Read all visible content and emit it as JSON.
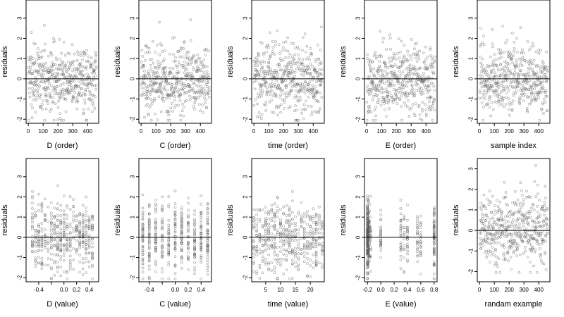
{
  "chart_data": [
    {
      "type": "scatter",
      "xlabel": "D (order)",
      "ylabel": "residuals",
      "xlim": [
        -15,
        475
      ],
      "ylim": [
        -2.2,
        3.9
      ],
      "xticks": [
        0,
        100,
        200,
        300,
        400
      ],
      "xtick_labels": [
        "0",
        "100",
        "200",
        "300",
        "400"
      ],
      "yticks": [
        -2,
        -1,
        0,
        1,
        2,
        3
      ],
      "ytick_labels": [
        "-2",
        "-1",
        "0",
        "1",
        "2",
        "3"
      ],
      "hline": 0,
      "n": 460,
      "x_kind": "index"
    },
    {
      "type": "scatter",
      "xlabel": "C (order)",
      "ylabel": "residuals",
      "xlim": [
        -15,
        475
      ],
      "ylim": [
        -2.2,
        3.9
      ],
      "xticks": [
        0,
        100,
        200,
        300,
        400
      ],
      "xtick_labels": [
        "0",
        "100",
        "200",
        "300",
        "400"
      ],
      "yticks": [
        -2,
        -1,
        0,
        1,
        2,
        3
      ],
      "ytick_labels": [
        "-2",
        "-1",
        "0",
        "1",
        "2",
        "3"
      ],
      "hline": 0,
      "n": 460,
      "x_kind": "index"
    },
    {
      "type": "scatter",
      "xlabel": "time (order)",
      "ylabel": "residuals",
      "xlim": [
        -15,
        475
      ],
      "ylim": [
        -2.2,
        3.9
      ],
      "xticks": [
        0,
        100,
        200,
        300,
        400
      ],
      "xtick_labels": [
        "0",
        "100",
        "200",
        "300",
        "400"
      ],
      "yticks": [
        -2,
        -1,
        0,
        1,
        2,
        3
      ],
      "ytick_labels": [
        "-2",
        "-1",
        "0",
        "1",
        "2",
        "3"
      ],
      "hline": 0,
      "n": 460,
      "x_kind": "index"
    },
    {
      "type": "scatter",
      "xlabel": "E (order)",
      "ylabel": "residuals",
      "xlim": [
        -15,
        475
      ],
      "ylim": [
        -2.2,
        3.9
      ],
      "xticks": [
        0,
        100,
        200,
        300,
        400
      ],
      "xtick_labels": [
        "0",
        "100",
        "200",
        "300",
        "400"
      ],
      "yticks": [
        -2,
        -1,
        0,
        1,
        2,
        3
      ],
      "ytick_labels": [
        "-2",
        "-1",
        "0",
        "1",
        "2",
        "3"
      ],
      "hline": 0,
      "n": 460,
      "x_kind": "index"
    },
    {
      "type": "scatter",
      "xlabel": "sample index",
      "ylabel": "residuals",
      "xlim": [
        -15,
        475
      ],
      "ylim": [
        -2.2,
        3.9
      ],
      "xticks": [
        0,
        100,
        200,
        300,
        400
      ],
      "xtick_labels": [
        "0",
        "100",
        "200",
        "300",
        "400"
      ],
      "yticks": [
        -2,
        -1,
        0,
        1,
        2,
        3
      ],
      "ytick_labels": [
        "-2",
        "-1",
        "0",
        "1",
        "2",
        "3"
      ],
      "hline": 0,
      "n": 460,
      "x_kind": "index"
    },
    {
      "type": "scatter",
      "xlabel": "D (value)",
      "ylabel": "residuals",
      "xlim": [
        -0.6,
        0.55
      ],
      "ylim": [
        -2.2,
        3.9
      ],
      "xticks": [
        -0.4,
        -0.2,
        0.0,
        0.2,
        0.4
      ],
      "xtick_labels": [
        "-0.4",
        "",
        "0.0",
        "0.2",
        "0.4"
      ],
      "yticks": [
        -2,
        -1,
        0,
        1,
        2,
        3
      ],
      "ytick_labels": [
        "-2",
        "-1",
        "0",
        "1",
        "2",
        "3"
      ],
      "hline": 0,
      "n": 460,
      "x_kind": "discrete",
      "x_levels": [
        -0.5,
        -0.45,
        -0.4,
        -0.35,
        -0.3,
        -0.25,
        -0.2,
        -0.15,
        -0.1,
        -0.05,
        0.0,
        0.05,
        0.1,
        0.15,
        0.2,
        0.25,
        0.3,
        0.35,
        0.4,
        0.45
      ]
    },
    {
      "type": "scatter",
      "xlabel": "C (value)",
      "ylabel": "residuals",
      "xlim": [
        -0.56,
        0.56
      ],
      "ylim": [
        -2.2,
        3.9
      ],
      "xticks": [
        -0.4,
        -0.2,
        0.0,
        0.2,
        0.4
      ],
      "xtick_labels": [
        "-0.4",
        "",
        "0.0",
        "0.2",
        "0.4"
      ],
      "yticks": [
        -2,
        -1,
        0,
        1,
        2,
        3
      ],
      "ytick_labels": [
        "-2",
        "-1",
        "0",
        "1",
        "2",
        "3"
      ],
      "hline": 0,
      "n": 460,
      "x_kind": "discrete",
      "x_levels": [
        -0.5,
        -0.4,
        -0.3,
        -0.2,
        -0.1,
        0.0,
        0.1,
        0.2,
        0.3,
        0.4,
        0.5
      ]
    },
    {
      "type": "scatter",
      "xlabel": "time (value)",
      "ylabel": "residuals",
      "xlim": [
        0.3,
        24.7
      ],
      "ylim": [
        -2.2,
        3.9
      ],
      "xticks": [
        5,
        10,
        15,
        20
      ],
      "xtick_labels": [
        "5",
        "10",
        "15",
        "20"
      ],
      "yticks": [
        -2,
        -1,
        0,
        1,
        2,
        3
      ],
      "ytick_labels": [
        "-2",
        "-1",
        "0",
        "1",
        "2",
        "3"
      ],
      "hline": 0,
      "n": 460,
      "x_kind": "discrete",
      "x_levels": [
        1,
        2,
        3,
        4,
        5,
        6,
        7,
        8,
        9,
        10,
        11,
        12,
        13,
        14,
        15,
        16,
        17,
        18,
        19,
        20,
        21,
        22,
        23,
        24
      ]
    },
    {
      "type": "scatter",
      "xlabel": "E (value)",
      "ylabel": "residuals",
      "xlim": [
        -0.245,
        0.845
      ],
      "ylim": [
        -2.2,
        3.9
      ],
      "xticks": [
        -0.2,
        0.0,
        0.2,
        0.4,
        0.6,
        0.8
      ],
      "xtick_labels": [
        "-0.2",
        "0.0",
        "0.2",
        "0.4",
        "0.6",
        "0.8"
      ],
      "yticks": [
        -2,
        -1,
        0,
        1,
        2,
        3
      ],
      "ytick_labels": [
        "-2",
        "-1",
        "0",
        "1",
        "2",
        "3"
      ],
      "hline": 0,
      "n": 460,
      "x_kind": "clustered",
      "x_levels": [
        -0.2,
        -0.2,
        -0.2,
        -0.2,
        -0.2,
        -0.2,
        -0.2,
        -0.19,
        -0.18,
        -0.17,
        -0.15,
        0.0,
        0.3,
        0.35,
        0.4,
        0.55,
        0.6,
        0.8,
        0.8,
        0.8
      ]
    },
    {
      "type": "scatter",
      "xlabel": "randam example",
      "ylabel": "residuals",
      "xlim": [
        -15,
        475
      ],
      "ylim": [
        -2.5,
        3.5
      ],
      "xticks": [
        0,
        100,
        200,
        300,
        400
      ],
      "xtick_labels": [
        "0",
        "100",
        "200",
        "300",
        "400"
      ],
      "yticks": [
        -2,
        -1,
        0,
        1,
        2,
        3
      ],
      "ytick_labels": [
        "-2",
        "-1",
        "0",
        "1",
        "2",
        "3"
      ],
      "hline": 0,
      "n": 460,
      "x_kind": "index"
    }
  ]
}
